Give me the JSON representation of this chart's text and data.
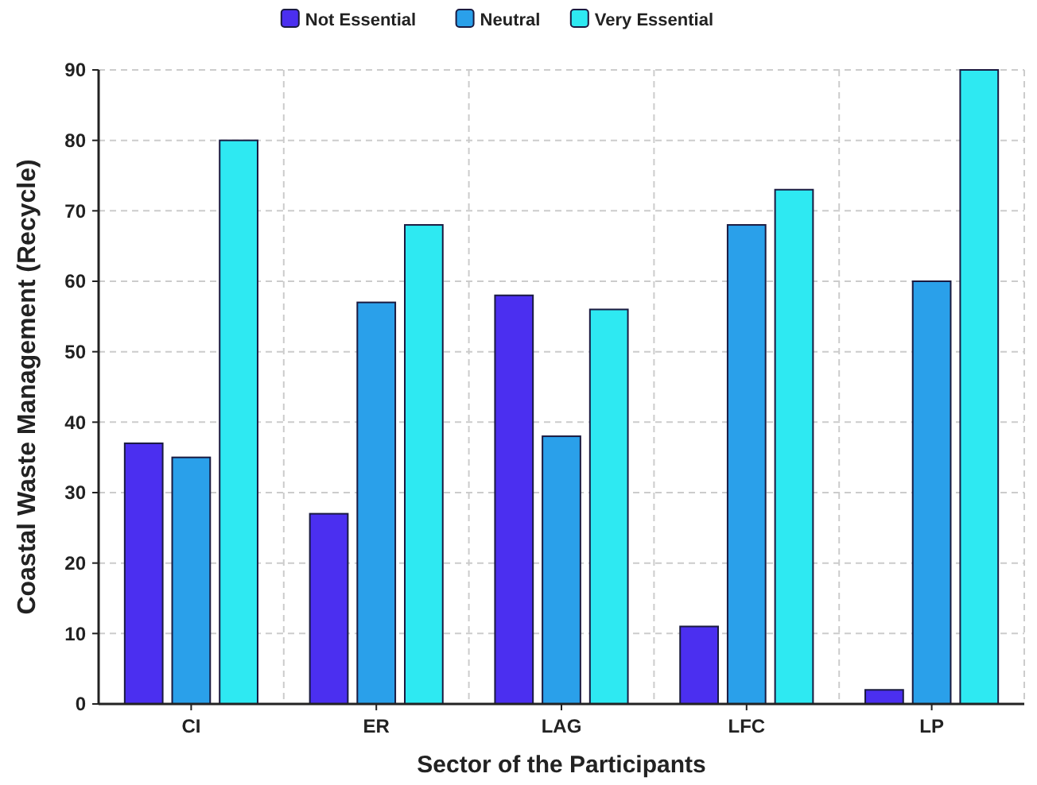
{
  "chart_data": {
    "type": "bar",
    "xlabel": "Sector of the Participants",
    "ylabel": "Coastal Waste Management (Recycle)",
    "categories": [
      "CI",
      "ER",
      "LAG",
      "LFC",
      "LP"
    ],
    "series": [
      {
        "name": "Not Essential",
        "color": "#4b2ff0",
        "values": [
          37,
          27,
          58,
          11,
          2
        ]
      },
      {
        "name": "Neutral",
        "color": "#2aa0ea",
        "values": [
          35,
          57,
          38,
          68,
          60
        ]
      },
      {
        "name": "Very Essential",
        "color": "#2ee9f2",
        "values": [
          80,
          68,
          56,
          73,
          90
        ]
      }
    ],
    "ylim": [
      0,
      90
    ],
    "yticks": [
      0,
      10,
      20,
      30,
      40,
      50,
      60,
      70,
      80,
      90
    ],
    "grid": true,
    "legend": "top"
  }
}
